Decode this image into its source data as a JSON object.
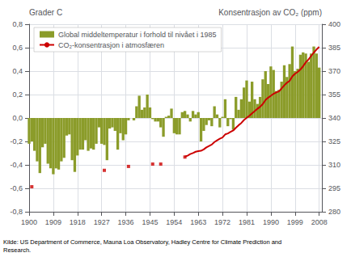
{
  "chart_data": {
    "type": "bar",
    "ylabel": "Grader C",
    "y2label": "Konsentrasjon av CO₂ (ppm)",
    "source": "Kilde: US Department of Commerce, Mauna Loa Observatory, Hadley Centre for Climate Prediction and\nResearch.",
    "xlim": [
      1900,
      2009
    ],
    "xticks": [
      1900,
      1909,
      1918,
      1927,
      1936,
      1945,
      1954,
      1963,
      1972,
      1981,
      1990,
      1999,
      2008
    ],
    "ylim": [
      -0.8,
      0.8
    ],
    "yticks": [
      {
        "value": -0.8,
        "label": "-0,8"
      },
      {
        "value": -0.6,
        "label": "-0,6"
      },
      {
        "value": -0.4,
        "label": "-0,4"
      },
      {
        "value": -0.2,
        "label": "-0,2"
      },
      {
        "value": 0.0,
        "label": "0,0"
      },
      {
        "value": 0.2,
        "label": "0,2"
      },
      {
        "value": 0.4,
        "label": "0,4"
      },
      {
        "value": 0.6,
        "label": "0,6"
      },
      {
        "value": 0.8,
        "label": "0,8"
      }
    ],
    "y2lim": [
      280,
      400
    ],
    "y2ticks": [
      280,
      295,
      310,
      325,
      340,
      355,
      370,
      385,
      400
    ],
    "grid": true,
    "legend": "upper left",
    "series": [
      {
        "name": "Global middeltemperatur i forhold til nivået i 1985",
        "type": "bar",
        "color": "#8B9C2A",
        "x": [
          1900,
          1901,
          1902,
          1903,
          1904,
          1905,
          1906,
          1907,
          1908,
          1909,
          1910,
          1911,
          1912,
          1913,
          1914,
          1915,
          1916,
          1917,
          1918,
          1919,
          1920,
          1921,
          1922,
          1923,
          1924,
          1925,
          1926,
          1927,
          1928,
          1929,
          1930,
          1931,
          1932,
          1933,
          1934,
          1935,
          1936,
          1937,
          1938,
          1939,
          1940,
          1941,
          1942,
          1943,
          1944,
          1945,
          1946,
          1947,
          1948,
          1949,
          1950,
          1951,
          1952,
          1953,
          1954,
          1955,
          1956,
          1957,
          1958,
          1959,
          1960,
          1961,
          1962,
          1963,
          1964,
          1965,
          1966,
          1967,
          1968,
          1969,
          1970,
          1971,
          1972,
          1973,
          1974,
          1975,
          1976,
          1977,
          1978,
          1979,
          1980,
          1981,
          1982,
          1983,
          1984,
          1985,
          1986,
          1987,
          1988,
          1989,
          1990,
          1991,
          1992,
          1993,
          1994,
          1995,
          1996,
          1997,
          1998,
          1999,
          2000,
          2001,
          2002,
          2003,
          2004,
          2005,
          2006,
          2007,
          2008
        ],
        "values": [
          -0.22,
          -0.2,
          -0.28,
          -0.37,
          -0.47,
          -0.25,
          -0.22,
          -0.39,
          -0.43,
          -0.48,
          -0.43,
          -0.44,
          -0.37,
          -0.34,
          -0.15,
          -0.14,
          -0.36,
          -0.46,
          -0.32,
          -0.27,
          -0.27,
          -0.19,
          -0.28,
          -0.26,
          -0.27,
          -0.22,
          -0.08,
          -0.22,
          -0.23,
          -0.36,
          -0.09,
          -0.08,
          -0.11,
          -0.27,
          -0.13,
          -0.19,
          -0.14,
          -0.02,
          -0.0,
          -0.02,
          0.1,
          0.19,
          0.07,
          0.09,
          0.2,
          0.09,
          -0.01,
          -0.03,
          -0.03,
          -0.08,
          -0.16,
          0.01,
          0.02,
          0.08,
          -0.13,
          -0.14,
          -0.14,
          0.05,
          0.06,
          0.03,
          -0.03,
          0.06,
          0.03,
          0.05,
          -0.2,
          -0.11,
          -0.06,
          -0.02,
          -0.07,
          0.1,
          0.03,
          -0.08,
          0.01,
          0.16,
          -0.07,
          -0.01,
          -0.1,
          0.18,
          0.07,
          0.16,
          0.26,
          0.32,
          0.14,
          0.31,
          0.16,
          0.12,
          0.18,
          0.33,
          0.4,
          0.29,
          0.44,
          0.41,
          0.23,
          0.24,
          0.31,
          0.45,
          0.35,
          0.46,
          0.61,
          0.4,
          0.42,
          0.54,
          0.56,
          0.55,
          0.48,
          0.55,
          0.61,
          0.55,
          0.43
        ]
      },
      {
        "name": "CO₂-konsentrasjon i atmosfæren",
        "type": "line",
        "color": "#CC0000",
        "axis": "y2",
        "x": [
          1958,
          1959,
          1960,
          1961,
          1962,
          1963,
          1964,
          1965,
          1966,
          1967,
          1968,
          1969,
          1970,
          1971,
          1972,
          1973,
          1974,
          1975,
          1976,
          1977,
          1978,
          1979,
          1980,
          1981,
          1982,
          1983,
          1984,
          1985,
          1986,
          1987,
          1988,
          1989,
          1990,
          1991,
          1992,
          1993,
          1994,
          1995,
          1996,
          1997,
          1998,
          1999,
          2000,
          2001,
          2002,
          2003,
          2004,
          2005,
          2006,
          2007,
          2008
        ],
        "values": [
          315.3,
          315.9,
          316.9,
          317.6,
          318.4,
          318.8,
          319.0,
          319.9,
          321.2,
          322.1,
          323.0,
          324.6,
          325.7,
          326.7,
          327.5,
          329.5,
          330.1,
          331.1,
          332.0,
          333.8,
          335.4,
          336.8,
          338.7,
          340.1,
          341.4,
          343.0,
          344.4,
          345.9,
          347.2,
          348.9,
          351.5,
          353.0,
          354.2,
          355.5,
          356.4,
          357.0,
          358.9,
          360.9,
          362.6,
          363.8,
          366.6,
          368.3,
          369.5,
          371.0,
          373.1,
          375.6,
          377.4,
          379.7,
          381.9,
          383.8,
          385.5
        ]
      },
      {
        "type": "scatter",
        "color": "#CC0000",
        "axis": "y2",
        "marker": "square",
        "x": [
          1901,
          1928,
          1937,
          1946,
          1949,
          1958
        ],
        "values": [
          296.0,
          306.5,
          309.0,
          310.5,
          310.5,
          315.0
        ]
      }
    ]
  }
}
